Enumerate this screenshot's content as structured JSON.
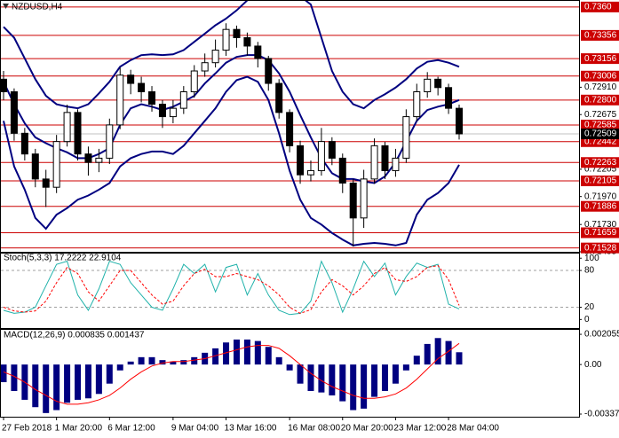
{
  "chart_data": [
    {
      "type": "candlestick",
      "title": "NZDUSD,H4",
      "categories": [
        "27 Feb 2018",
        null,
        null,
        null,
        null,
        "1 Mar 20:00",
        null,
        null,
        null,
        null,
        "6 Mar 12:00",
        null,
        null,
        null,
        null,
        null,
        "9 Mar 04:00",
        null,
        null,
        null,
        null,
        "13 Mar 16:00",
        null,
        null,
        null,
        null,
        null,
        "16 Mar 08:00",
        null,
        null,
        null,
        null,
        "20 Mar 20:00",
        null,
        null,
        null,
        null,
        "23 Mar 12:00",
        null,
        null,
        null,
        null,
        "28 Mar 04:00",
        null
      ],
      "open": [
        0.72979,
        0.72871,
        0.72514,
        0.72336,
        0.72121,
        0.7205,
        0.72443,
        0.72693,
        0.72336,
        0.72264,
        0.723,
        0.72586,
        0.73014,
        0.72943,
        0.72871,
        0.72764,
        0.72657,
        0.72729,
        0.72871,
        0.7305,
        0.73121,
        0.73229,
        0.73407,
        0.73336,
        0.73264,
        0.73157,
        0.72943,
        0.72693,
        0.72407,
        0.72157,
        0.72193,
        0.72443,
        0.723,
        0.72086,
        0.71786,
        0.72121,
        0.72407,
        0.72193,
        0.723,
        0.72657,
        0.72871,
        0.72979,
        0.72907,
        0.72729
      ],
      "high": [
        0.7305,
        0.729,
        0.7256,
        0.7238,
        0.722,
        0.725,
        0.7276,
        0.7272,
        0.724,
        0.7238,
        0.7264,
        0.7308,
        0.7306,
        0.73,
        0.7292,
        0.728,
        0.728,
        0.7292,
        0.731,
        0.732,
        0.7332,
        0.7346,
        0.7344,
        0.7338,
        0.733,
        0.7318,
        0.7298,
        0.7272,
        0.7245,
        0.7228,
        0.7256,
        0.7248,
        0.7234,
        0.7212,
        0.722,
        0.7247,
        0.7244,
        0.7238,
        0.7272,
        0.7294,
        0.7304,
        0.73,
        0.7294,
        0.7276
      ],
      "low": [
        0.728,
        0.7245,
        0.7228,
        0.7205,
        0.7188,
        0.72,
        0.724,
        0.7228,
        0.7215,
        0.7218,
        0.7225,
        0.7255,
        0.7285,
        0.7278,
        0.727,
        0.7256,
        0.726,
        0.7268,
        0.7282,
        0.73,
        0.7308,
        0.7318,
        0.7325,
        0.7318,
        0.7308,
        0.7288,
        0.7264,
        0.7235,
        0.7208,
        0.721,
        0.7215,
        0.7224,
        0.72,
        0.7154,
        0.717,
        0.7208,
        0.7212,
        0.7214,
        0.7226,
        0.7262,
        0.7282,
        0.7284,
        0.7268,
        0.7246
      ],
      "close": [
        0.72871,
        0.72514,
        0.72336,
        0.72121,
        0.7205,
        0.72443,
        0.72693,
        0.72336,
        0.72264,
        0.723,
        0.72586,
        0.73014,
        0.72943,
        0.72871,
        0.72764,
        0.72657,
        0.72729,
        0.72871,
        0.7305,
        0.73121,
        0.73229,
        0.73407,
        0.73336,
        0.73264,
        0.73157,
        0.72943,
        0.72693,
        0.72407,
        0.72157,
        0.72193,
        0.72443,
        0.723,
        0.72086,
        0.71786,
        0.72121,
        0.72407,
        0.72193,
        0.723,
        0.72657,
        0.72871,
        0.72979,
        0.72907,
        0.72729,
        0.72509
      ],
      "color_up": "#ffffff",
      "color_down": "#000000",
      "wick_color": "#000000",
      "series": [
        {
          "color": "#000080",
          "values": [
            0.73429,
            0.73336,
            0.73157,
            0.72979,
            0.72836,
            0.72764,
            0.72743,
            0.72729,
            0.72764,
            0.72857,
            0.72957,
            0.73086,
            0.73143,
            0.73186,
            0.73193,
            0.73186,
            0.73193,
            0.73229,
            0.733,
            0.73371,
            0.73443,
            0.735,
            0.73571,
            0.73657,
            0.73714,
            0.73743,
            0.73743,
            0.73729,
            0.73693,
            0.73621,
            0.73336,
            0.7305,
            0.72871,
            0.72764,
            0.72729,
            0.728,
            0.7285,
            0.72907,
            0.72979,
            0.73071,
            0.73129,
            0.73143,
            0.73121,
            0.73086
          ]
        },
        {
          "color": "#000080",
          "values": [
            0.72957,
            0.72764,
            0.726,
            0.72479,
            0.72429,
            0.72386,
            0.7235,
            0.723,
            0.723,
            0.72336,
            0.72386,
            0.72586,
            0.72729,
            0.72764,
            0.72743,
            0.72714,
            0.72743,
            0.72786,
            0.72836,
            0.72943,
            0.73029,
            0.73121,
            0.73171,
            0.73186,
            0.73186,
            0.73143,
            0.73029,
            0.72871,
            0.72671,
            0.72479,
            0.723,
            0.72171,
            0.72121,
            0.72121,
            0.721,
            0.72086,
            0.72143,
            0.72264,
            0.72443,
            0.72621,
            0.72714,
            0.72743,
            0.72764,
            0.728
          ]
        },
        {
          "color": "#000080",
          "values": [
            0.72621,
            0.72229,
            0.72029,
            0.71786,
            0.71693,
            0.71814,
            0.71871,
            0.71943,
            0.71979,
            0.72029,
            0.72086,
            0.72229,
            0.723,
            0.72336,
            0.72357,
            0.72357,
            0.72336,
            0.72407,
            0.72514,
            0.72621,
            0.72729,
            0.72871,
            0.72971,
            0.73,
            0.72957,
            0.728,
            0.72514,
            0.72193,
            0.71943,
            0.71786,
            0.71729,
            0.71657,
            0.716,
            0.7155,
            0.71564,
            0.71571,
            0.71564,
            0.7155,
            0.71571,
            0.71814,
            0.71943,
            0.72,
            0.72086,
            0.72243
          ]
        }
      ],
      "ylim": [
        0.71495,
        0.7366
      ],
      "yticks": [
        {
          "value": 0.7291,
          "label": "0.72910"
        },
        0.72675,
        0.72205,
        {
          "value": 0.7197,
          "label": "0.71970"
        },
        {
          "value": 0.7173,
          "label": "0.71730"
        },
        0.71495
      ],
      "levels": {
        "color": "#cc0000",
        "values": [
          {
            "value": 0.736,
            "label": "0.7360"
          },
          0.73356,
          0.73156,
          0.73006,
          {
            "value": 0.728,
            "label": "0.72800"
          },
          0.72585,
          0.72442,
          0.72263,
          0.72105,
          0.71886,
          0.71659,
          0.71528
        ]
      },
      "last_price": 0.72509
    },
    {
      "type": "line",
      "title": "Stoch(5,3,3) 17.2222 22.9104",
      "series": [
        {
          "color": "#20b2aa",
          "dash": false,
          "values": [
            15,
            10,
            12,
            20,
            55,
            90,
            95,
            40,
            15,
            50,
            95,
            90,
            60,
            40,
            20,
            15,
            50,
            90,
            75,
            90,
            45,
            85,
            90,
            40,
            75,
            40,
            15,
            8,
            10,
            30,
            95,
            60,
            12,
            50,
            95,
            70,
            92,
            40,
            70,
            92,
            85,
            90,
            25,
            17.2222
          ]
        },
        {
          "color": "#ff0000",
          "dash": true,
          "values": [
            20,
            14,
            12,
            14,
            30,
            60,
            85,
            75,
            45,
            30,
            55,
            80,
            80,
            60,
            40,
            25,
            30,
            55,
            75,
            82,
            70,
            70,
            75,
            70,
            65,
            55,
            40,
            20,
            10,
            16,
            45,
            65,
            55,
            40,
            55,
            75,
            85,
            65,
            62,
            70,
            85,
            88,
            65,
            22.9104
          ]
        }
      ],
      "ylim": [
        -14,
        109
      ],
      "yticks": [
        0,
        20,
        80,
        100
      ],
      "grid": "dashed"
    },
    {
      "type": "macd",
      "title": "MACD(12,26,9) 0.000835 0.001437",
      "series": [
        {
          "color": "#000080",
          "style": "histogram",
          "values": [
            -0.0012,
            -0.0018,
            -0.0024,
            -0.0029,
            -0.0033,
            -0.0031,
            -0.0026,
            -0.0024,
            -0.0023,
            -0.002,
            -0.0013,
            -0.0004,
            0.0002,
            0.0005,
            0.0005,
            0.0003,
            0.0002,
            0.0003,
            0.0005,
            0.0008,
            0.0011,
            0.0015,
            0.0017,
            0.0017,
            0.0016,
            0.0012,
            0.0005,
            -0.0004,
            -0.0013,
            -0.0018,
            -0.0019,
            -0.0021,
            -0.0025,
            -0.0031,
            -0.003,
            -0.0022,
            -0.0018,
            -0.0013,
            -0.0004,
            0.0006,
            0.0014,
            0.0018,
            0.0016,
            0.000835
          ]
        },
        {
          "color": "#ff0000",
          "style": "line",
          "values": [
            -0.0005,
            -0.0008,
            -0.0012,
            -0.0017,
            -0.0021,
            -0.0025,
            -0.0027,
            -0.0027,
            -0.0026,
            -0.0024,
            -0.0021,
            -0.0016,
            -0.001,
            -0.0005,
            -0.0001,
            0.0001,
            0.0002,
            0.0002,
            0.0003,
            0.0004,
            0.0006,
            0.0008,
            0.001,
            0.0012,
            0.0013,
            0.0013,
            0.0011,
            0.0006,
            0.0,
            -0.0006,
            -0.0011,
            -0.0015,
            -0.0018,
            -0.0021,
            -0.0023,
            -0.0023,
            -0.0022,
            -0.002,
            -0.0016,
            -0.001,
            -0.0003,
            0.0004,
            0.0009,
            0.001437
          ]
        }
      ],
      "ylim": [
        -0.00355,
        0.00242
      ],
      "yticks": [
        0.002055,
        {
          "value": 0,
          "label": "0.00"
        },
        -0.00337
      ]
    }
  ]
}
